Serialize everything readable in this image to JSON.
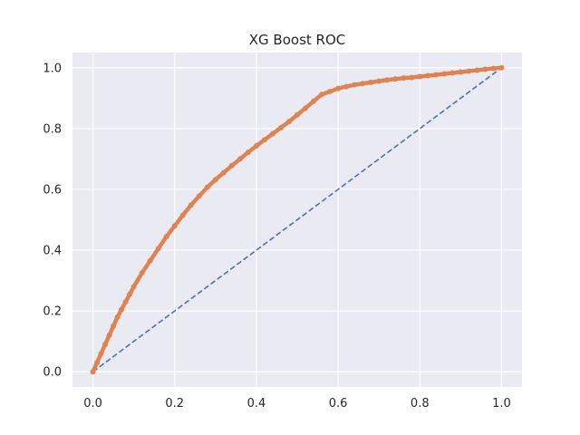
{
  "chart_data": {
    "type": "line",
    "title": "XG Boost ROC",
    "xlabel": "",
    "ylabel": "",
    "xlim": [
      -0.05,
      1.05
    ],
    "ylim": [
      -0.05,
      1.05
    ],
    "xticks": [
      0.0,
      0.2,
      0.4,
      0.6,
      0.8,
      1.0
    ],
    "yticks": [
      0.0,
      0.2,
      0.4,
      0.6,
      0.8,
      1.0
    ],
    "xtick_labels": [
      "0.0",
      "0.2",
      "0.4",
      "0.6",
      "0.8",
      "1.0"
    ],
    "ytick_labels": [
      "0.0",
      "0.2",
      "0.4",
      "0.6",
      "0.8",
      "1.0"
    ],
    "grid": true,
    "background": "#eaeaf2",
    "series": [
      {
        "style": "dashed-line",
        "color": "#4c72b0",
        "x": [
          0.0,
          1.0
        ],
        "y": [
          0.0,
          1.0
        ]
      },
      {
        "style": "line-with-markers",
        "color": "#dd8452",
        "x": [
          0.0,
          0.01,
          0.02,
          0.03,
          0.04,
          0.05,
          0.06,
          0.07,
          0.08,
          0.09,
          0.1,
          0.12,
          0.14,
          0.16,
          0.18,
          0.2,
          0.22,
          0.24,
          0.26,
          0.28,
          0.3,
          0.32,
          0.34,
          0.36,
          0.38,
          0.4,
          0.42,
          0.44,
          0.46,
          0.48,
          0.5,
          0.52,
          0.54,
          0.56,
          0.58,
          0.6,
          0.62,
          0.64,
          0.66,
          0.68,
          0.7,
          0.72,
          0.74,
          0.76,
          0.78,
          0.8,
          0.82,
          0.84,
          0.86,
          0.88,
          0.9,
          0.92,
          0.94,
          0.96,
          0.98,
          1.0
        ],
        "y": [
          0.0,
          0.03,
          0.06,
          0.09,
          0.12,
          0.15,
          0.18,
          0.205,
          0.23,
          0.255,
          0.28,
          0.325,
          0.365,
          0.405,
          0.445,
          0.48,
          0.515,
          0.548,
          0.578,
          0.607,
          0.632,
          0.655,
          0.678,
          0.7,
          0.722,
          0.743,
          0.763,
          0.783,
          0.803,
          0.823,
          0.845,
          0.867,
          0.89,
          0.912,
          0.922,
          0.932,
          0.938,
          0.944,
          0.948,
          0.952,
          0.956,
          0.96,
          0.963,
          0.966,
          0.968,
          0.971,
          0.974,
          0.977,
          0.98,
          0.983,
          0.986,
          0.989,
          0.992,
          0.995,
          0.998,
          1.0
        ]
      }
    ]
  }
}
